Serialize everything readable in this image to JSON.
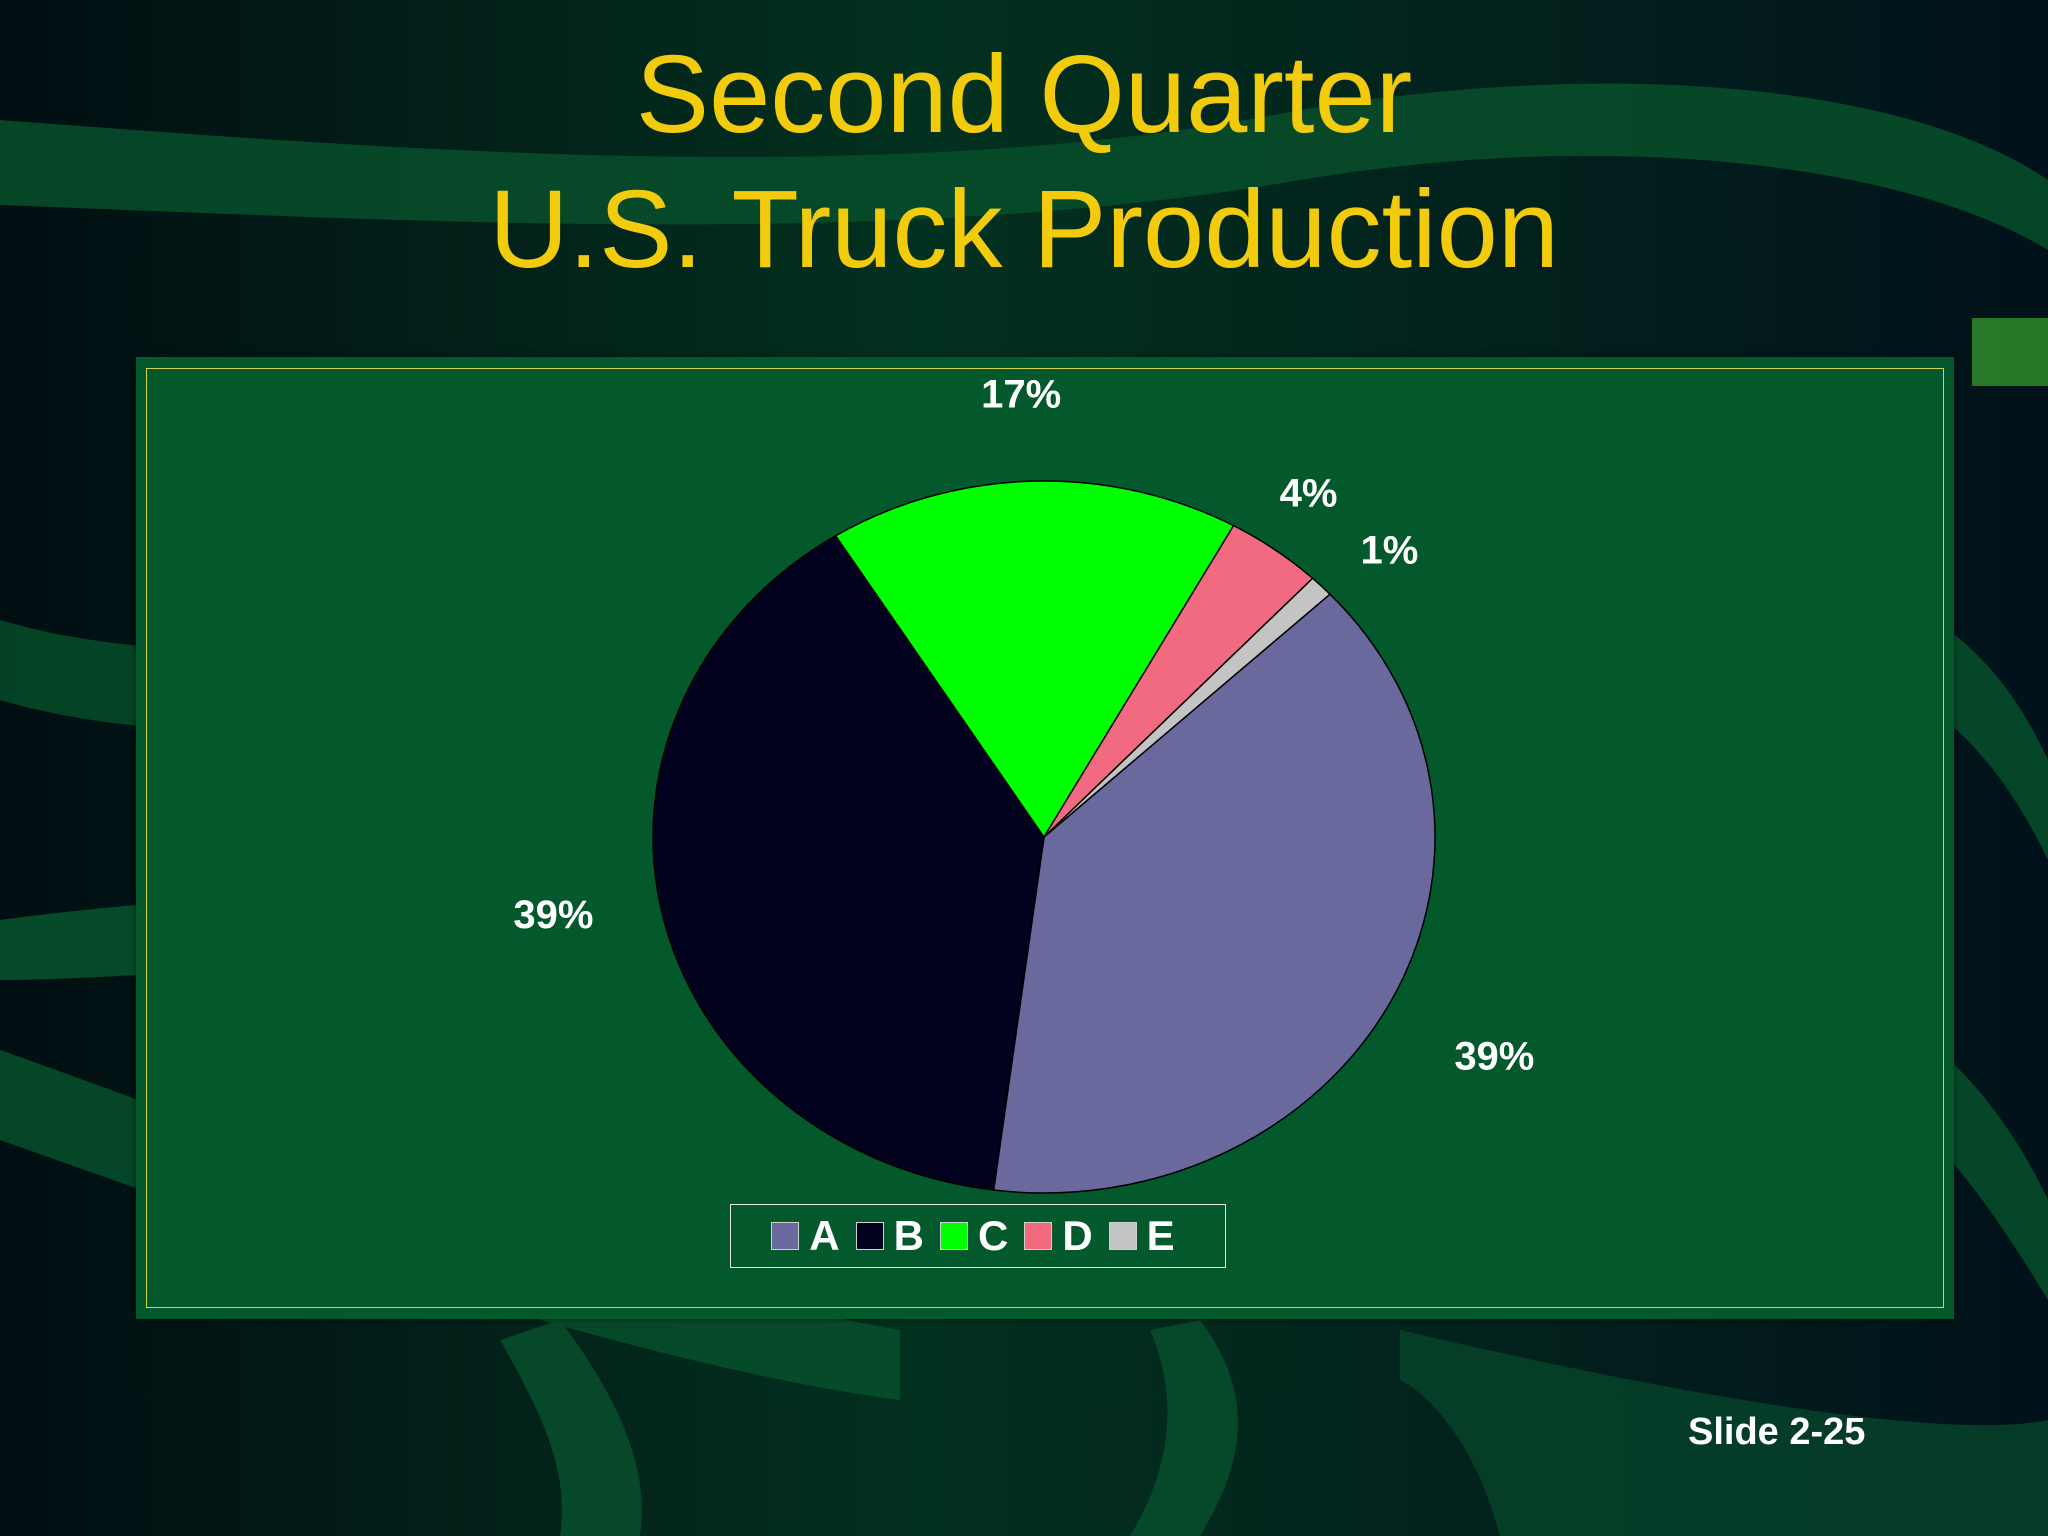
{
  "slide": {
    "title_line1": "Second Quarter",
    "title_line2": "U.S. Truck Production",
    "slide_number": "Slide 2-25"
  },
  "colors": {
    "background": "#021c14",
    "ribbon": "#075a30",
    "title": "#f2cc0c",
    "panel": "#03592b",
    "panel_border": "#d6d24a"
  },
  "chart_data": {
    "type": "pie",
    "title": "",
    "categories": [
      "A",
      "B",
      "C",
      "D",
      "E"
    ],
    "values": [
      39,
      39,
      17,
      4,
      1
    ],
    "labels": [
      "39%",
      "39%",
      "17%",
      "4%",
      "1%"
    ],
    "colors": [
      "#6a699e",
      "#02021f",
      "#00ff00",
      "#f26a80",
      "#c4c4c4"
    ],
    "legend_position": "bottom",
    "grid": false
  }
}
